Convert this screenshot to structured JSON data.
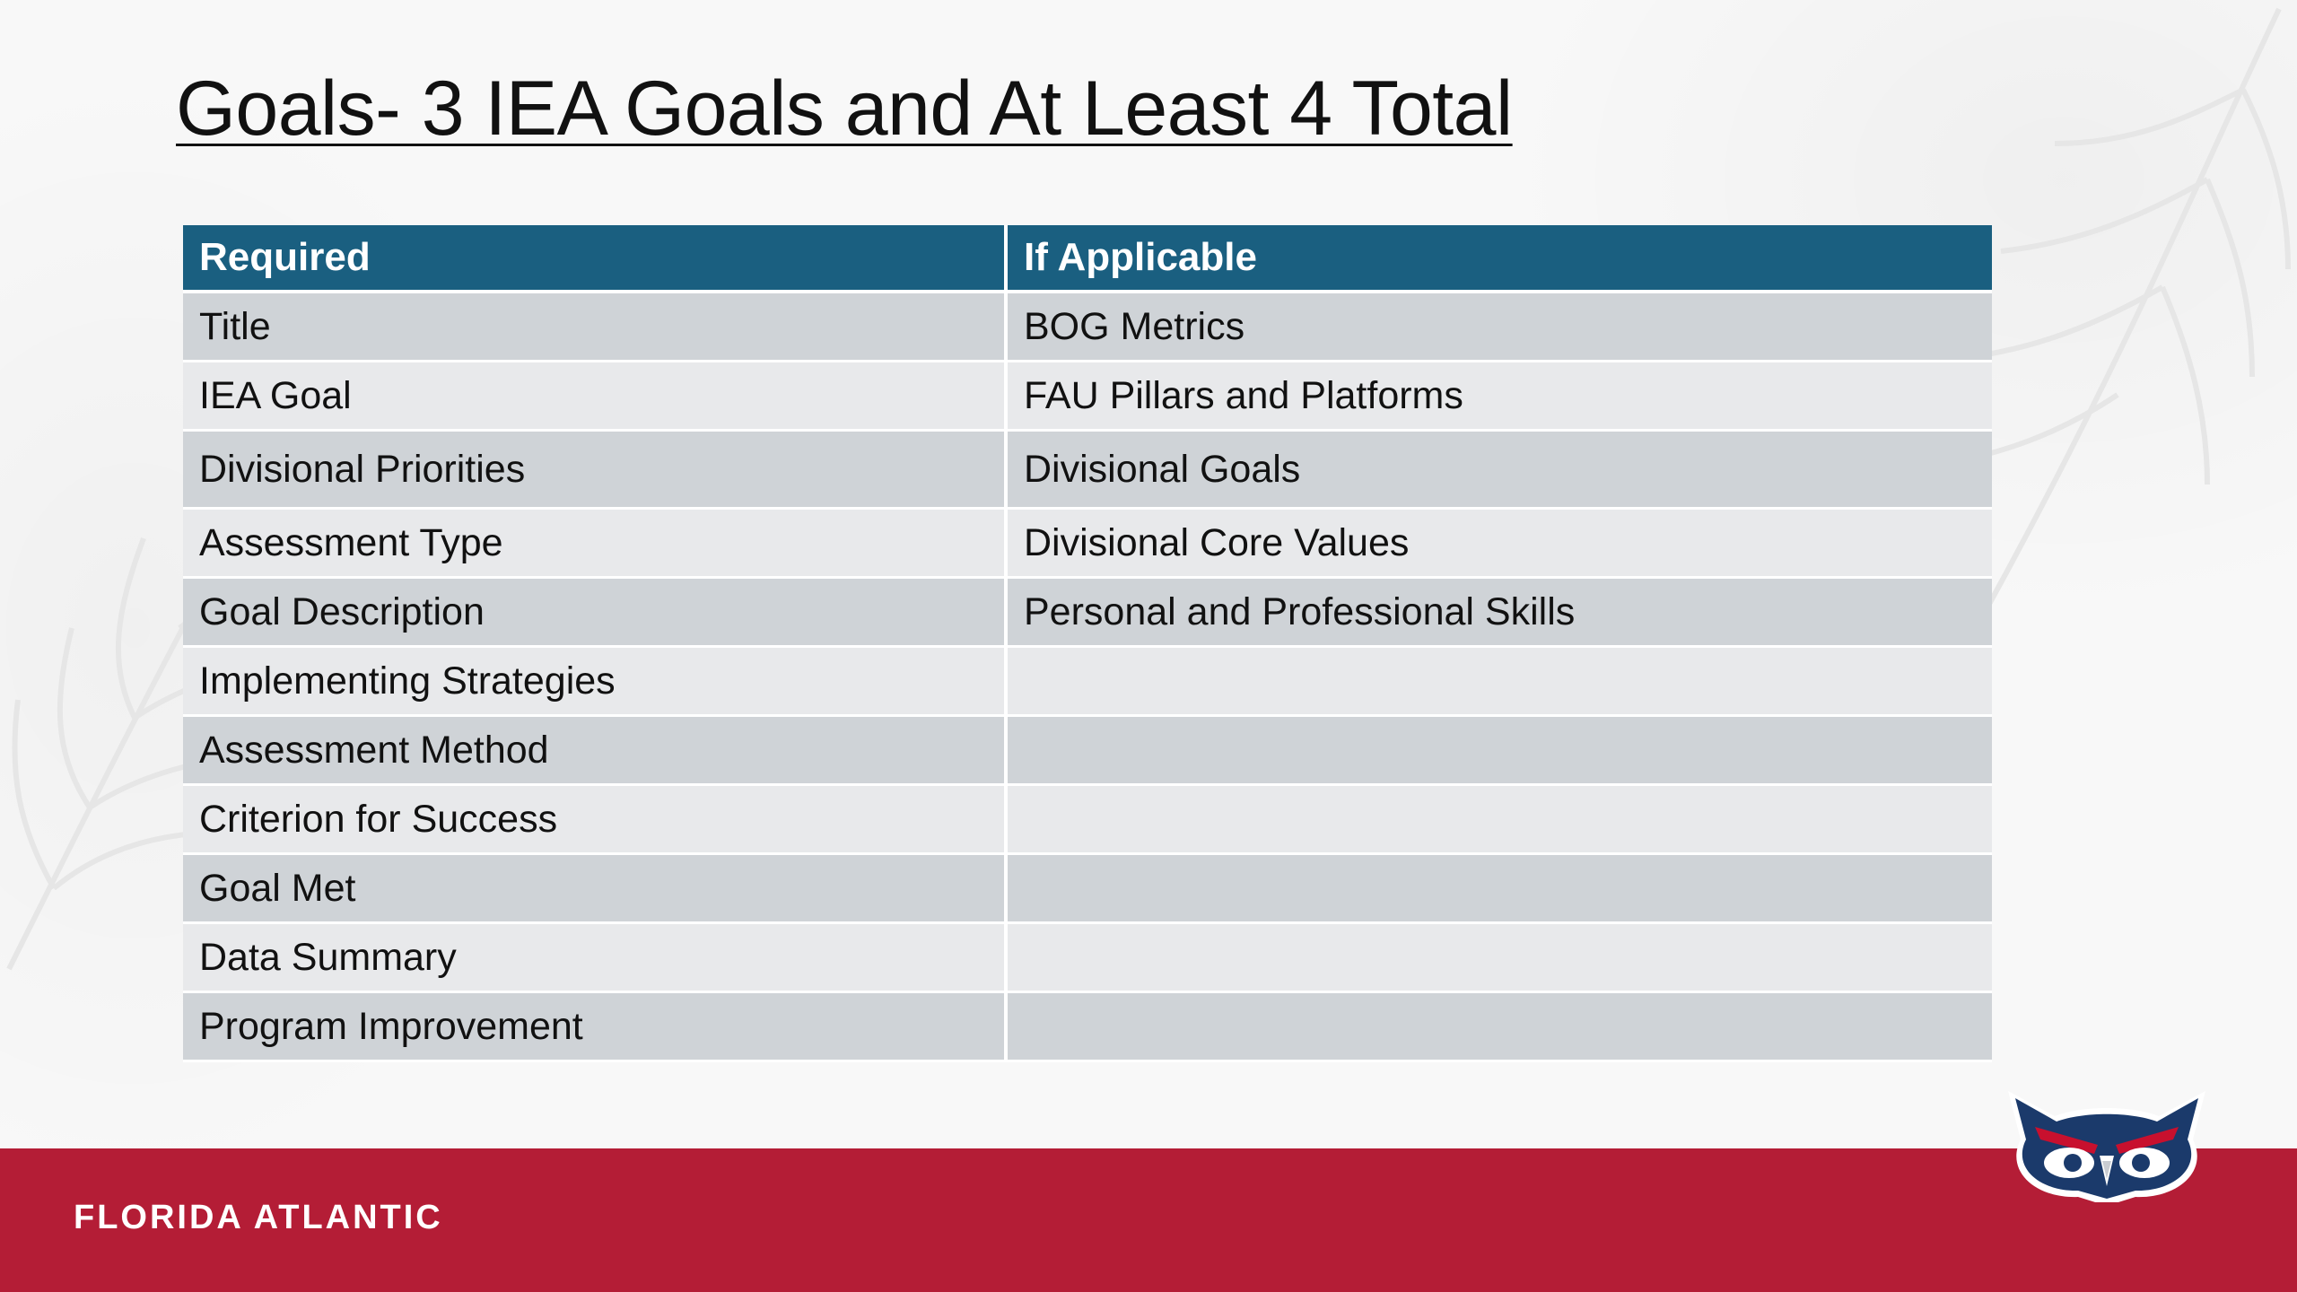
{
  "slide": {
    "title": "Goals- 3 IEA Goals and At Least 4 Total"
  },
  "table": {
    "headers": [
      "Required",
      "If Applicable"
    ],
    "rows": [
      [
        "Title",
        "BOG Metrics"
      ],
      [
        "IEA Goal",
        "FAU Pillars and Platforms"
      ],
      [
        "Divisional Priorities",
        "Divisional Goals"
      ],
      [
        "Assessment Type",
        "Divisional Core Values"
      ],
      [
        "Goal Description",
        "Personal and Professional Skills"
      ],
      [
        "Implementing Strategies",
        ""
      ],
      [
        "Assessment Method",
        ""
      ],
      [
        "Criterion for Success",
        ""
      ],
      [
        "Goal Met",
        ""
      ],
      [
        "Data Summary",
        ""
      ],
      [
        "Program Improvement",
        ""
      ]
    ]
  },
  "footer": {
    "brand": "FLORIDA ATLANTIC",
    "logo_icon": "owl-logo-icon"
  },
  "colors": {
    "header_bg": "#1a5f80",
    "footer_band": "#b41d36",
    "row_dark": "#cfd3d7",
    "row_light": "#e8e9eb",
    "owl_blue": "#1b3a6b"
  }
}
